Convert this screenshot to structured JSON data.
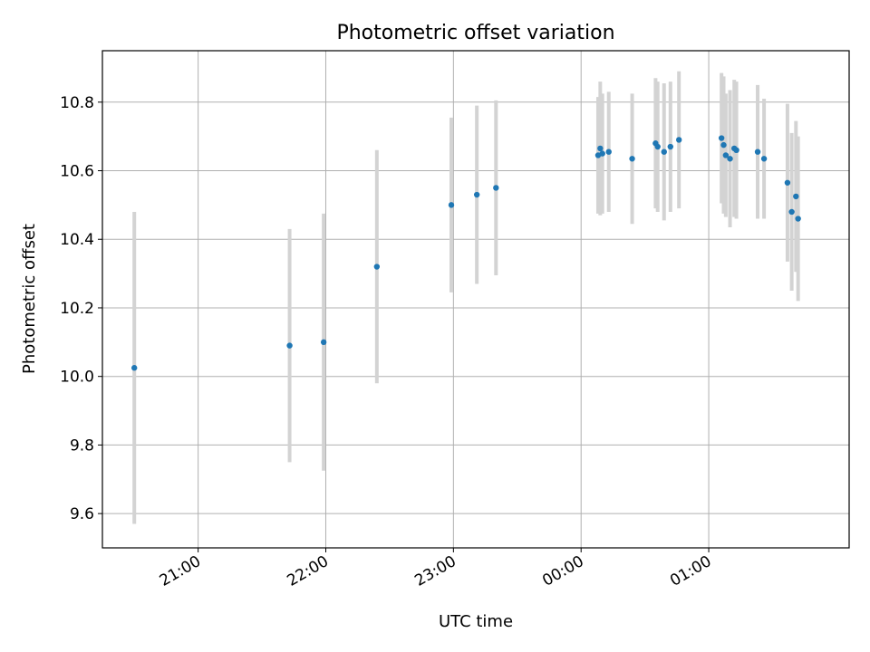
{
  "chart_data": {
    "type": "scatter",
    "title": "Photometric offset variation",
    "xlabel": "UTC time",
    "ylabel": "Photometric offset",
    "x_unit": "UTC",
    "x_start_time": "20:15",
    "x_end_time": "02:06",
    "xticks": [
      "21:00",
      "22:00",
      "23:00",
      "00:00",
      "01:00"
    ],
    "ylim": [
      9.5,
      10.95
    ],
    "yticks": [
      "9.6",
      "9.8",
      "10.0",
      "10.2",
      "10.4",
      "10.6",
      "10.8"
    ],
    "grid": true,
    "point_color": "#1f77b4",
    "errorbar_color": "#d3d3d3",
    "points": [
      {
        "time": "20:30",
        "y": 10.025,
        "err": 0.455
      },
      {
        "time": "21:43",
        "y": 10.09,
        "err": 0.34
      },
      {
        "time": "21:59",
        "y": 10.1,
        "err": 0.375
      },
      {
        "time": "22:24",
        "y": 10.32,
        "err": 0.34
      },
      {
        "time": "22:59",
        "y": 10.5,
        "err": 0.255
      },
      {
        "time": "23:11",
        "y": 10.53,
        "err": 0.26
      },
      {
        "time": "23:20",
        "y": 10.55,
        "err": 0.255
      },
      {
        "time": "00:08",
        "y": 10.645,
        "err": 0.17
      },
      {
        "time": "00:09",
        "y": 10.665,
        "err": 0.195
      },
      {
        "time": "00:10",
        "y": 10.65,
        "err": 0.175
      },
      {
        "time": "00:13",
        "y": 10.655,
        "err": 0.175
      },
      {
        "time": "00:24",
        "y": 10.635,
        "err": 0.19
      },
      {
        "time": "00:35",
        "y": 10.68,
        "err": 0.19
      },
      {
        "time": "00:36",
        "y": 10.67,
        "err": 0.19
      },
      {
        "time": "00:39",
        "y": 10.655,
        "err": 0.2
      },
      {
        "time": "00:42",
        "y": 10.67,
        "err": 0.19
      },
      {
        "time": "00:46",
        "y": 10.69,
        "err": 0.2
      },
      {
        "time": "01:06",
        "y": 10.695,
        "err": 0.19
      },
      {
        "time": "01:07",
        "y": 10.675,
        "err": 0.2
      },
      {
        "time": "01:08",
        "y": 10.645,
        "err": 0.18
      },
      {
        "time": "01:10",
        "y": 10.635,
        "err": 0.2
      },
      {
        "time": "01:12",
        "y": 10.665,
        "err": 0.2
      },
      {
        "time": "01:13",
        "y": 10.66,
        "err": 0.2
      },
      {
        "time": "01:23",
        "y": 10.655,
        "err": 0.195
      },
      {
        "time": "01:26",
        "y": 10.635,
        "err": 0.175
      },
      {
        "time": "01:37",
        "y": 10.565,
        "err": 0.23
      },
      {
        "time": "01:39",
        "y": 10.48,
        "err": 0.23
      },
      {
        "time": "01:41",
        "y": 10.525,
        "err": 0.22
      },
      {
        "time": "01:42",
        "y": 10.46,
        "err": 0.24
      }
    ]
  }
}
